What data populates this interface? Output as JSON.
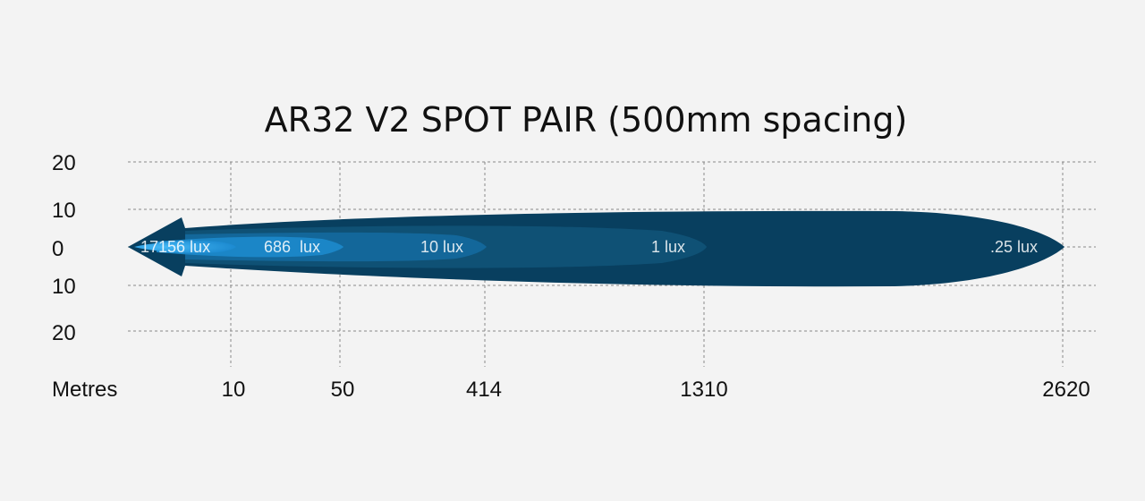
{
  "chart_data": {
    "type": "area",
    "title": "AR32 V2 SPOT PAIR (500mm spacing)",
    "xlabel": "Metres",
    "x_ticks": [
      "10",
      "50",
      "414",
      "1310",
      "2620"
    ],
    "y_ticks": [
      "20",
      "10",
      "0",
      "10",
      "20"
    ],
    "grid": true,
    "isolux": [
      {
        "label": "17156 lux",
        "reach_m": "10"
      },
      {
        "label": "686  lux",
        "reach_m": "50"
      },
      {
        "label": "10 lux",
        "reach_m": "414"
      },
      {
        "label": "1 lux",
        "reach_m": "1310"
      },
      {
        "label": ".25 lux",
        "reach_m": "2620"
      }
    ],
    "colors": {
      "background": "#f3f3f3",
      "grid": "#8a8a8a",
      "zone_025": "#083f5f",
      "zone_1": "#0f5175",
      "zone_10": "#13679a",
      "zone_686": "#1b86c7",
      "zone_17156": "#2fa3e6"
    }
  }
}
